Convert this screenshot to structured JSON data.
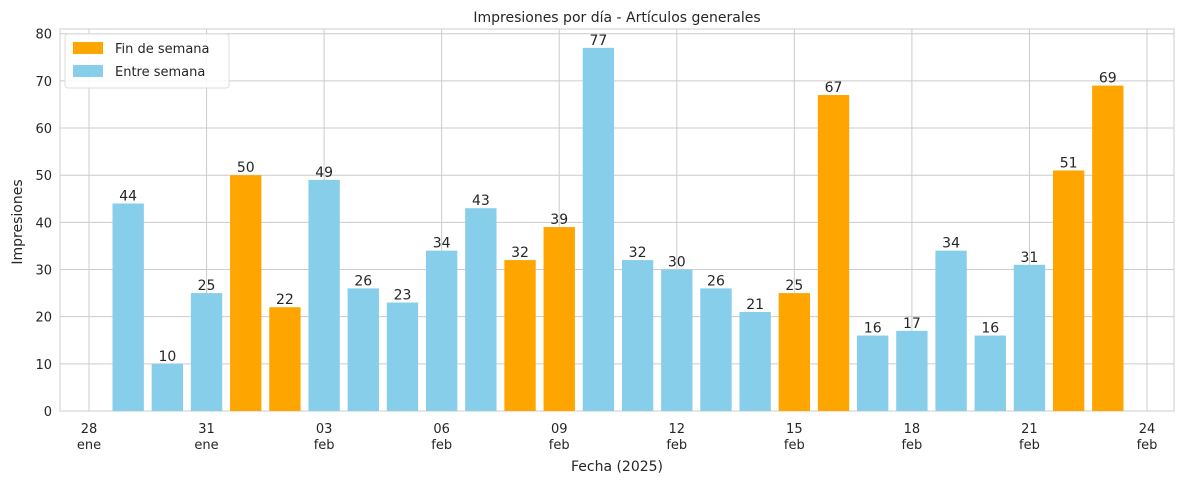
{
  "chart_data": {
    "type": "bar",
    "title": "Impresiones por día - Artículos generales",
    "xlabel": "Fecha (2025)",
    "ylabel": "Impresiones",
    "ylim": [
      0,
      81
    ],
    "yticks": [
      0,
      10,
      20,
      30,
      40,
      50,
      60,
      70,
      80
    ],
    "xlim": [
      "2025-01-28",
      "2025-02-24"
    ],
    "xticks": [
      {
        "date": "2025-01-28",
        "day": "28",
        "month": "ene"
      },
      {
        "date": "2025-01-31",
        "day": "31",
        "month": "ene"
      },
      {
        "date": "2025-02-03",
        "day": "03",
        "month": "feb"
      },
      {
        "date": "2025-02-06",
        "day": "06",
        "month": "feb"
      },
      {
        "date": "2025-02-09",
        "day": "09",
        "month": "feb"
      },
      {
        "date": "2025-02-12",
        "day": "12",
        "month": "feb"
      },
      {
        "date": "2025-02-15",
        "day": "15",
        "month": "feb"
      },
      {
        "date": "2025-02-18",
        "day": "18",
        "month": "feb"
      },
      {
        "date": "2025-02-21",
        "day": "21",
        "month": "feb"
      },
      {
        "date": "2025-02-24",
        "day": "24",
        "month": "feb"
      }
    ],
    "grid": true,
    "legend_position": "top-left",
    "legend": [
      {
        "name": "Fin de semana",
        "color": "#FFA500"
      },
      {
        "name": "Entre semana",
        "color": "#87CEEB"
      }
    ],
    "bars": [
      {
        "date": "2025-01-29",
        "value": 44,
        "weekend": false
      },
      {
        "date": "2025-01-30",
        "value": 10,
        "weekend": false
      },
      {
        "date": "2025-01-31",
        "value": 25,
        "weekend": false
      },
      {
        "date": "2025-02-01",
        "value": 50,
        "weekend": true
      },
      {
        "date": "2025-02-02",
        "value": 22,
        "weekend": true
      },
      {
        "date": "2025-02-03",
        "value": 49,
        "weekend": false
      },
      {
        "date": "2025-02-04",
        "value": 26,
        "weekend": false
      },
      {
        "date": "2025-02-05",
        "value": 23,
        "weekend": false
      },
      {
        "date": "2025-02-06",
        "value": 34,
        "weekend": false
      },
      {
        "date": "2025-02-07",
        "value": 43,
        "weekend": false
      },
      {
        "date": "2025-02-08",
        "value": 32,
        "weekend": true
      },
      {
        "date": "2025-02-09",
        "value": 39,
        "weekend": true
      },
      {
        "date": "2025-02-10",
        "value": 77,
        "weekend": false
      },
      {
        "date": "2025-02-11",
        "value": 32,
        "weekend": false
      },
      {
        "date": "2025-02-12",
        "value": 30,
        "weekend": false
      },
      {
        "date": "2025-02-13",
        "value": 26,
        "weekend": false
      },
      {
        "date": "2025-02-14",
        "value": 21,
        "weekend": false
      },
      {
        "date": "2025-02-15",
        "value": 25,
        "weekend": true
      },
      {
        "date": "2025-02-16",
        "value": 67,
        "weekend": true
      },
      {
        "date": "2025-02-17",
        "value": 16,
        "weekend": false
      },
      {
        "date": "2025-02-18",
        "value": 17,
        "weekend": false
      },
      {
        "date": "2025-02-19",
        "value": 34,
        "weekend": false
      },
      {
        "date": "2025-02-20",
        "value": 16,
        "weekend": false
      },
      {
        "date": "2025-02-21",
        "value": 31,
        "weekend": false
      },
      {
        "date": "2025-02-22",
        "value": 51,
        "weekend": true
      },
      {
        "date": "2025-02-23",
        "value": 69,
        "weekend": true
      }
    ]
  }
}
